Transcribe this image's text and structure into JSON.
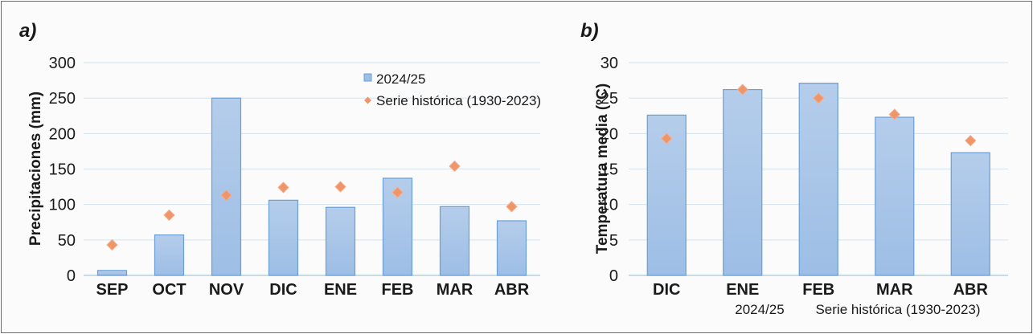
{
  "chart_data": [
    {
      "type": "bar",
      "panel_label": "a)",
      "categories": [
        "SEP",
        "OCT",
        "NOV",
        "DIC",
        "ENE",
        "FEB",
        "MAR",
        "ABR"
      ],
      "series": [
        {
          "name": "2024/25",
          "kind": "bar",
          "values": [
            7,
            57,
            250,
            106,
            96,
            137,
            97,
            77
          ]
        },
        {
          "name": "Serie histórica (1930-2023)",
          "kind": "marker",
          "values": [
            43,
            85,
            113,
            124,
            125,
            117,
            154,
            97
          ]
        }
      ],
      "ylabel": "Precipitaciones (mm)",
      "ylim": [
        0,
        300
      ],
      "yticks": [
        "0",
        "50",
        "100",
        "150",
        "200",
        "250",
        "300"
      ],
      "grid": true,
      "legend": "top-right"
    },
    {
      "type": "bar",
      "panel_label": "b)",
      "categories": [
        "DIC",
        "ENE",
        "FEB",
        "MAR",
        "ABR"
      ],
      "series": [
        {
          "name": "2024/25",
          "kind": "bar",
          "values": [
            22.6,
            26.2,
            27.1,
            22.3,
            17.3
          ]
        },
        {
          "name": "Serie histórica (1930-2023)",
          "kind": "marker",
          "values": [
            19.3,
            26.2,
            25.0,
            22.7,
            19.0
          ]
        }
      ],
      "ylabel": "Temperatura media (ºC)",
      "ylim": [
        0,
        30
      ],
      "yticks": [
        "0",
        "5",
        "10",
        "15",
        "20",
        "25",
        "30"
      ],
      "grid": true,
      "legend": "bottom"
    }
  ],
  "colors": {
    "bar_top": "#b5cdeb",
    "bar_bottom": "#9dbee5",
    "bar_border": "#6a9fd8",
    "marker": "#f0956a",
    "marker_border": "#f2b08f",
    "grid": "#d6e3ec",
    "axis": "#b8cfdc"
  }
}
